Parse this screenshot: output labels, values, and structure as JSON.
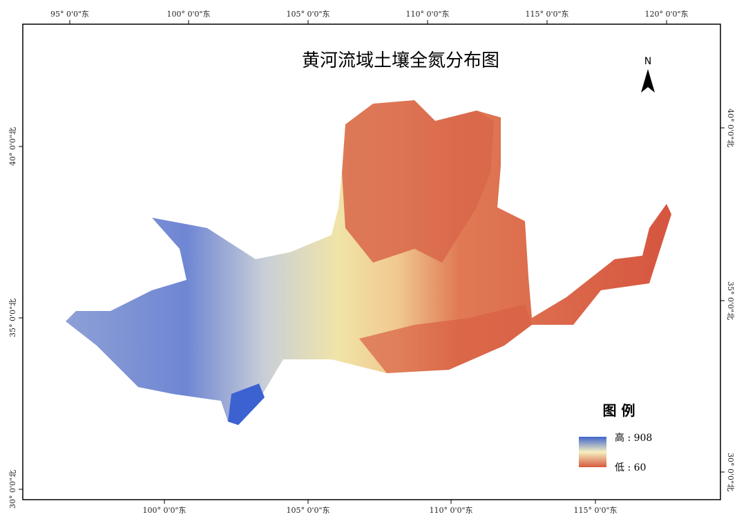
{
  "map_title": "黄河流域土壤全氮分布图",
  "north_label": "N",
  "graticule": {
    "top": [
      "95° 0'0\"东",
      "100° 0'0\"东",
      "105° 0'0\"东",
      "110° 0'0\"东",
      "115° 0'0\"东",
      "120° 0'0\"东"
    ],
    "bottom": [
      "100° 0'0\"东",
      "105° 0'0\"东",
      "110° 0'0\"东",
      "115° 0'0\"东"
    ],
    "left": [
      "40° 0'0\"北",
      "35° 0'0\"北",
      "30° 0'0\"北"
    ],
    "right": [
      "40° 0'0\"北",
      "35° 0'0\"北",
      "30° 0'0\"北"
    ]
  },
  "legend": {
    "title": "图 例",
    "high": "高 : 908",
    "low": "低 : 60"
  }
}
